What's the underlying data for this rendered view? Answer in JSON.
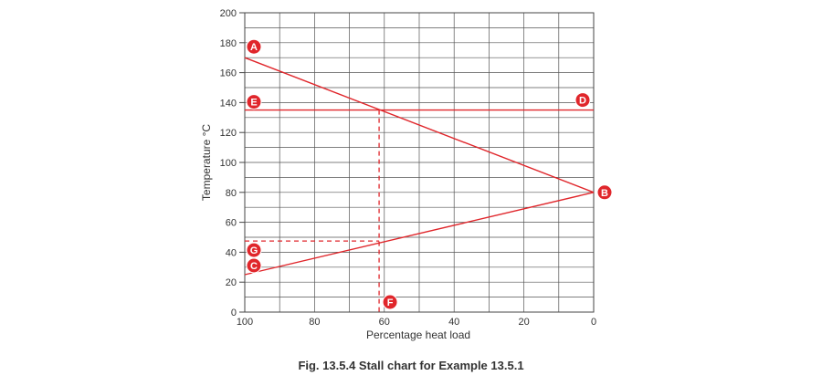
{
  "caption": "Fig. 13.5.4 Stall chart for Example 13.5.1",
  "colors": {
    "series": "#e0262b",
    "grid": "#555555",
    "marker": "#e0262b"
  },
  "chart_data": {
    "type": "line",
    "xlabel": "Percentage heat load",
    "ylabel": "Temperature °C",
    "xlim": [
      100,
      0
    ],
    "ylim": [
      0,
      200
    ],
    "x_ticks": [
      "100",
      "80",
      "60",
      "40",
      "20",
      "0"
    ],
    "y_ticks": [
      "0",
      "20",
      "40",
      "60",
      "80",
      "100",
      "120",
      "140",
      "160",
      "180",
      "200"
    ],
    "grid": true,
    "series": [
      {
        "points": [
          [
            100,
            170
          ],
          [
            0,
            80
          ]
        ]
      },
      {
        "points": [
          [
            100,
            25
          ],
          [
            0,
            80
          ]
        ]
      },
      {
        "points": [
          [
            100,
            135
          ],
          [
            0,
            135
          ]
        ]
      }
    ],
    "guides": [
      {
        "points": [
          [
            61.5,
            135
          ],
          [
            61.5,
            0
          ]
        ]
      },
      {
        "points": [
          [
            100,
            47.5
          ],
          [
            61.5,
            47.5
          ]
        ]
      }
    ],
    "markers": [
      {
        "label": "A",
        "x": 100,
        "y": 170
      },
      {
        "label": "B",
        "x": 0,
        "y": 80
      },
      {
        "label": "C",
        "x": 100,
        "y": 25
      },
      {
        "label": "D",
        "x": 0,
        "y": 135
      },
      {
        "label": "E",
        "x": 100,
        "y": 135
      },
      {
        "label": "F",
        "x": 61.5,
        "y": 0
      },
      {
        "label": "G",
        "x": 100,
        "y": 47.5
      }
    ]
  }
}
